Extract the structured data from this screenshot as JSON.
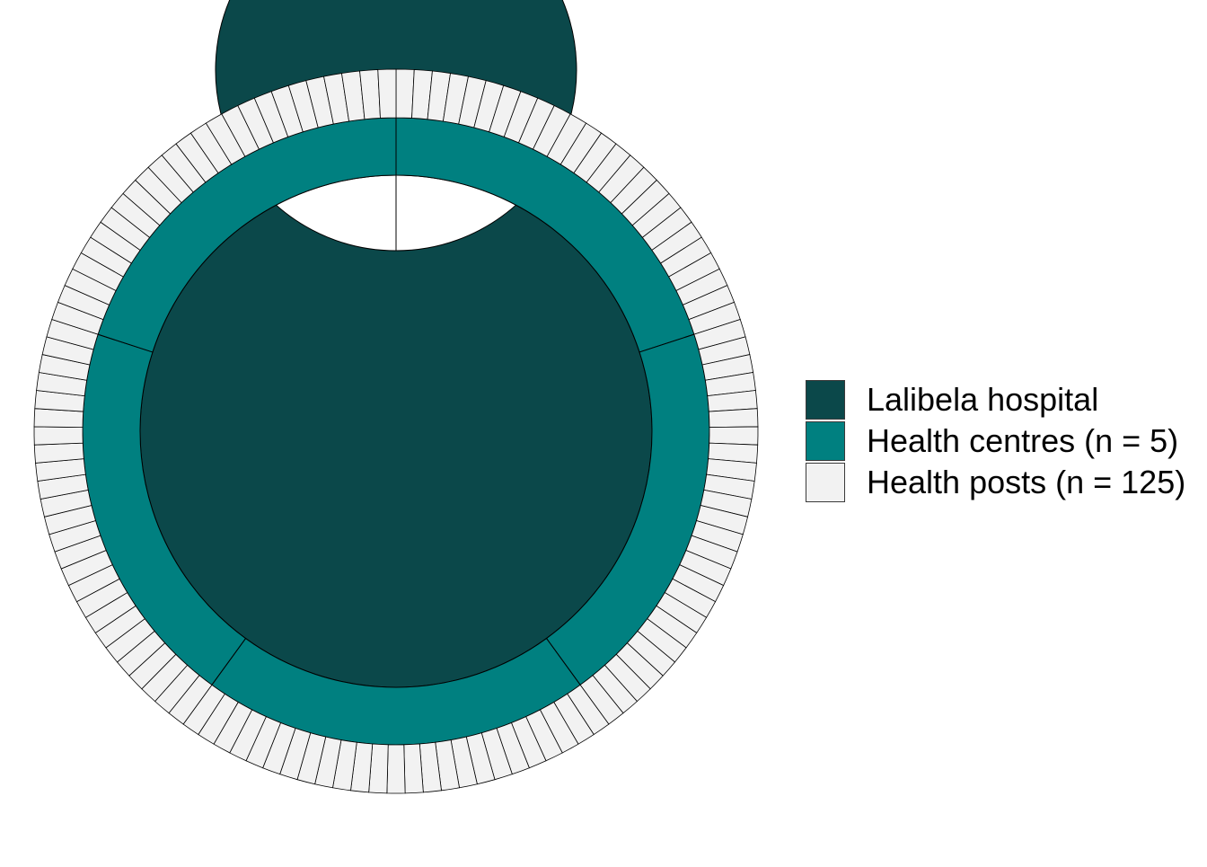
{
  "chart_data": {
    "type": "pie",
    "title": "",
    "layout": "nested-donut",
    "rings": [
      {
        "level": "Lalibela hospital",
        "segments": 1,
        "color": "#0b484a"
      },
      {
        "level": "Health centres (n = 5)",
        "segments": 5,
        "color": "#008080"
      },
      {
        "level": "Health posts (n = 125)",
        "segments": 125,
        "color": "#f2f2f2"
      }
    ],
    "legend": {
      "position": "right",
      "entries": [
        {
          "label": "Lalibela hospital",
          "color": "#0b484a"
        },
        {
          "label": "Health centres (n = 5)",
          "color": "#008080"
        },
        {
          "label": "Health posts (n = 125)",
          "color": "#f2f2f2"
        }
      ]
    },
    "stroke_color": "#000000"
  }
}
